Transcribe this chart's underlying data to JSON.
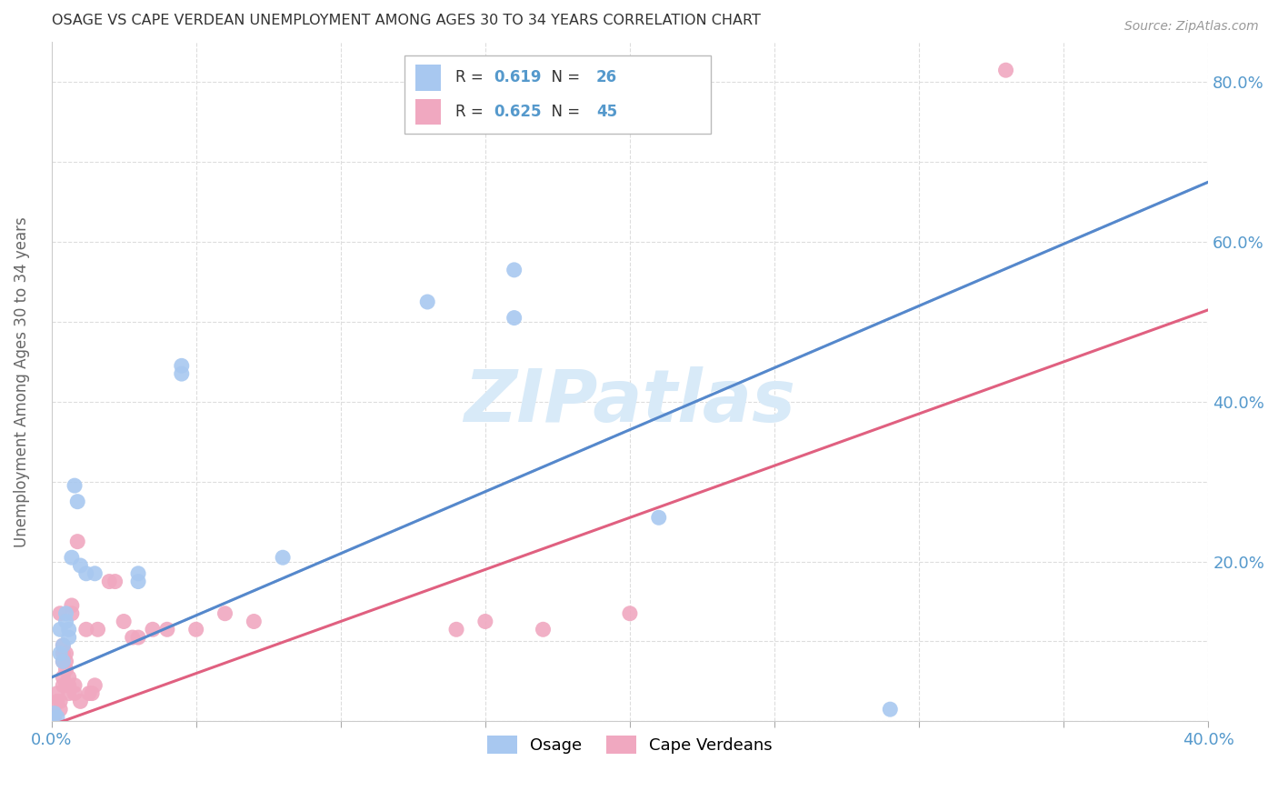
{
  "title": "OSAGE VS CAPE VERDEAN UNEMPLOYMENT AMONG AGES 30 TO 34 YEARS CORRELATION CHART",
  "source": "Source: ZipAtlas.com",
  "ylabel_label": "Unemployment Among Ages 30 to 34 years",
  "xlim": [
    0.0,
    0.4
  ],
  "ylim": [
    0.0,
    0.85
  ],
  "xtick_vals": [
    0.0,
    0.05,
    0.1,
    0.15,
    0.2,
    0.25,
    0.3,
    0.35,
    0.4
  ],
  "xticklabels": [
    "0.0%",
    "",
    "",
    "",
    "",
    "",
    "",
    "",
    "40.0%"
  ],
  "ytick_vals": [
    0.0,
    0.1,
    0.2,
    0.3,
    0.4,
    0.5,
    0.6,
    0.7,
    0.8
  ],
  "yticklabels_right": [
    "",
    "",
    "20.0%",
    "",
    "40.0%",
    "",
    "60.0%",
    "",
    "80.0%"
  ],
  "osage_color": "#a8c8f0",
  "cape_verdean_color": "#f0a8c0",
  "osage_line_color": "#5588cc",
  "cape_verdean_line_color": "#e06080",
  "dashed_line_color": "#aabbcc",
  "osage_R": "0.619",
  "osage_N": "26",
  "cape_verdean_R": "0.625",
  "cape_verdean_N": "45",
  "watermark": "ZIPatlas",
  "watermark_color": "#d8eaf8",
  "osage_line_slope": 1.55,
  "osage_line_intercept": 0.055,
  "cape_verdean_line_slope": 1.3,
  "cape_verdean_line_intercept": -0.005,
  "osage_points": [
    [
      0.001,
      0.01
    ],
    [
      0.002,
      0.005
    ],
    [
      0.003,
      0.085
    ],
    [
      0.003,
      0.115
    ],
    [
      0.004,
      0.095
    ],
    [
      0.004,
      0.075
    ],
    [
      0.005,
      0.135
    ],
    [
      0.005,
      0.125
    ],
    [
      0.006,
      0.115
    ],
    [
      0.006,
      0.105
    ],
    [
      0.007,
      0.205
    ],
    [
      0.008,
      0.295
    ],
    [
      0.009,
      0.275
    ],
    [
      0.01,
      0.195
    ],
    [
      0.012,
      0.185
    ],
    [
      0.015,
      0.185
    ],
    [
      0.03,
      0.175
    ],
    [
      0.03,
      0.185
    ],
    [
      0.045,
      0.445
    ],
    [
      0.045,
      0.435
    ],
    [
      0.08,
      0.205
    ],
    [
      0.13,
      0.525
    ],
    [
      0.16,
      0.505
    ],
    [
      0.16,
      0.565
    ],
    [
      0.21,
      0.255
    ],
    [
      0.29,
      0.015
    ]
  ],
  "cape_verdean_points": [
    [
      0.001,
      0.005
    ],
    [
      0.001,
      0.008
    ],
    [
      0.002,
      0.025
    ],
    [
      0.002,
      0.035
    ],
    [
      0.003,
      0.015
    ],
    [
      0.003,
      0.025
    ],
    [
      0.003,
      0.135
    ],
    [
      0.004,
      0.045
    ],
    [
      0.004,
      0.055
    ],
    [
      0.004,
      0.075
    ],
    [
      0.004,
      0.085
    ],
    [
      0.004,
      0.095
    ],
    [
      0.005,
      0.065
    ],
    [
      0.005,
      0.045
    ],
    [
      0.005,
      0.075
    ],
    [
      0.005,
      0.085
    ],
    [
      0.006,
      0.045
    ],
    [
      0.006,
      0.055
    ],
    [
      0.006,
      0.035
    ],
    [
      0.007,
      0.135
    ],
    [
      0.007,
      0.145
    ],
    [
      0.008,
      0.035
    ],
    [
      0.008,
      0.045
    ],
    [
      0.009,
      0.225
    ],
    [
      0.01,
      0.025
    ],
    [
      0.012,
      0.115
    ],
    [
      0.013,
      0.035
    ],
    [
      0.014,
      0.035
    ],
    [
      0.015,
      0.045
    ],
    [
      0.016,
      0.115
    ],
    [
      0.02,
      0.175
    ],
    [
      0.022,
      0.175
    ],
    [
      0.025,
      0.125
    ],
    [
      0.028,
      0.105
    ],
    [
      0.03,
      0.105
    ],
    [
      0.035,
      0.115
    ],
    [
      0.04,
      0.115
    ],
    [
      0.05,
      0.115
    ],
    [
      0.06,
      0.135
    ],
    [
      0.07,
      0.125
    ],
    [
      0.14,
      0.115
    ],
    [
      0.15,
      0.125
    ],
    [
      0.17,
      0.115
    ],
    [
      0.2,
      0.135
    ],
    [
      0.33,
      0.815
    ]
  ],
  "background_color": "#ffffff",
  "grid_color": "#dddddd",
  "tick_color": "#5599CC",
  "title_color": "#333333",
  "figsize": [
    14.06,
    8.92
  ],
  "dpi": 100
}
